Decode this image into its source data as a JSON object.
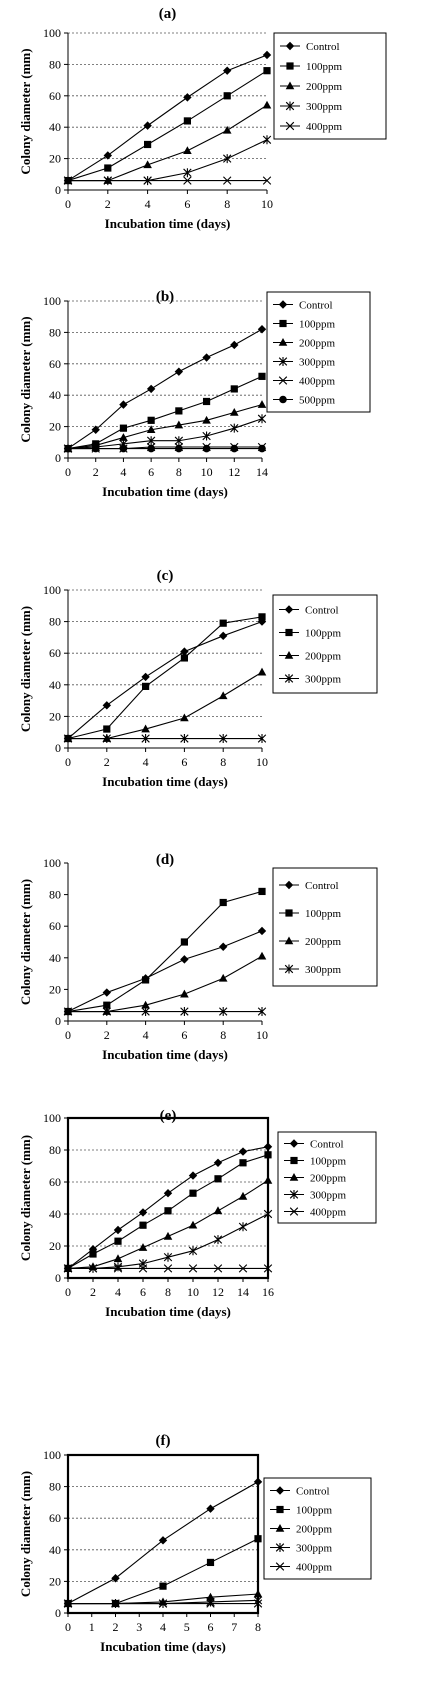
{
  "chart_data": [
    {
      "type": "line",
      "title": "(a)",
      "xlabel": "Incubation time (days)",
      "ylabel": "Colony diameter (mm)",
      "x": [
        0,
        2,
        4,
        6,
        8,
        10
      ],
      "xticks": [
        "0",
        "2",
        "4",
        "6",
        "8",
        "10"
      ],
      "xlim": [
        0,
        10
      ],
      "ylim": [
        0,
        100
      ],
      "yticks": [
        "0",
        "20",
        "40",
        "60",
        "80",
        "100"
      ],
      "grid": true,
      "legend": "right",
      "series": [
        {
          "name": "Control",
          "marker": "diamond",
          "values": [
            6,
            22,
            41,
            59,
            76,
            86
          ]
        },
        {
          "name": "100ppm",
          "marker": "square",
          "values": [
            6,
            14,
            29,
            44,
            60,
            76
          ]
        },
        {
          "name": "200ppm",
          "marker": "triangle",
          "values": [
            6,
            6,
            16,
            25,
            38,
            54
          ]
        },
        {
          "name": "300ppm",
          "marker": "asterisk",
          "values": [
            6,
            6,
            6,
            11,
            20,
            32
          ]
        },
        {
          "name": "400ppm",
          "marker": "x",
          "values": [
            6,
            6,
            6,
            6,
            6,
            6
          ]
        }
      ]
    },
    {
      "type": "line",
      "title": "(b)",
      "xlabel": "Incubation time (days)",
      "ylabel": "Colony diameter (mm)",
      "x": [
        0,
        2,
        4,
        6,
        8,
        10,
        12,
        14
      ],
      "xticks": [
        "0",
        "2",
        "4",
        "6",
        "8",
        "10",
        "12",
        "14"
      ],
      "xlim": [
        0,
        14
      ],
      "ylim": [
        0,
        100
      ],
      "yticks": [
        "0",
        "20",
        "40",
        "60",
        "80",
        "100"
      ],
      "grid": true,
      "legend": "right",
      "series": [
        {
          "name": "Control",
          "marker": "diamond",
          "values": [
            6,
            18,
            34,
            44,
            55,
            64,
            72,
            82
          ]
        },
        {
          "name": "100ppm",
          "marker": "square",
          "values": [
            6,
            9,
            19,
            24,
            30,
            36,
            44,
            52
          ]
        },
        {
          "name": "200ppm",
          "marker": "triangle",
          "values": [
            6,
            8,
            13,
            18,
            21,
            24,
            29,
            34
          ]
        },
        {
          "name": "300ppm",
          "marker": "asterisk",
          "values": [
            6,
            7,
            9,
            11,
            11,
            14,
            19,
            25
          ]
        },
        {
          "name": "400ppm",
          "marker": "x",
          "values": [
            6,
            6,
            6,
            7,
            7,
            7,
            7,
            7
          ]
        },
        {
          "name": "500ppm",
          "marker": "circle",
          "values": [
            6,
            6,
            6,
            6,
            6,
            6,
            6,
            6
          ]
        }
      ]
    },
    {
      "type": "line",
      "title": "(c)",
      "xlabel": "Incubation time (days)",
      "ylabel": "Colony diameter (mm)",
      "x": [
        0,
        2,
        4,
        6,
        8,
        10
      ],
      "xticks": [
        "0",
        "2",
        "4",
        "6",
        "8",
        "10"
      ],
      "xlim": [
        0,
        10
      ],
      "ylim": [
        0,
        100
      ],
      "yticks": [
        "0",
        "20",
        "40",
        "60",
        "80",
        "100"
      ],
      "grid": true,
      "legend": "right",
      "series": [
        {
          "name": "Control",
          "marker": "diamond",
          "values": [
            6,
            27,
            45,
            61,
            71,
            80
          ]
        },
        {
          "name": "100ppm",
          "marker": "square",
          "values": [
            6,
            12,
            39,
            57,
            79,
            83
          ]
        },
        {
          "name": "200ppm",
          "marker": "triangle",
          "values": [
            6,
            6,
            12,
            19,
            33,
            48
          ]
        },
        {
          "name": "300ppm",
          "marker": "asterisk",
          "values": [
            6,
            6,
            6,
            6,
            6,
            6
          ]
        }
      ]
    },
    {
      "type": "line",
      "title": "(d)",
      "xlabel": "Incubation time (days)",
      "ylabel": "Colony diameter (mm)",
      "x": [
        0,
        2,
        4,
        6,
        8,
        10
      ],
      "xticks": [
        "0",
        "2",
        "4",
        "6",
        "8",
        "10"
      ],
      "xlim": [
        0,
        10
      ],
      "ylim": [
        0,
        100
      ],
      "yticks": [
        "0",
        "20",
        "40",
        "60",
        "80",
        "100"
      ],
      "grid": false,
      "legend": "right",
      "series": [
        {
          "name": "Control",
          "marker": "diamond",
          "values": [
            6,
            18,
            27,
            39,
            47,
            57
          ]
        },
        {
          "name": "100ppm",
          "marker": "square",
          "values": [
            6,
            10,
            26,
            50,
            75,
            82
          ]
        },
        {
          "name": "200ppm",
          "marker": "triangle",
          "values": [
            6,
            6,
            10,
            17,
            27,
            41
          ]
        },
        {
          "name": "300ppm",
          "marker": "asterisk",
          "values": [
            6,
            6,
            6,
            6,
            6,
            6
          ]
        }
      ]
    },
    {
      "type": "line",
      "title": "(e)",
      "xlabel": "Incubation time (days)",
      "ylabel": "Colony diameter (mm)",
      "x": [
        0,
        2,
        4,
        6,
        8,
        10,
        12,
        14,
        16
      ],
      "xticks": [
        "0",
        "2",
        "4",
        "6",
        "8",
        "10",
        "12",
        "14",
        "16"
      ],
      "xlim": [
        0,
        16
      ],
      "ylim": [
        0,
        100
      ],
      "yticks": [
        "0",
        "20",
        "40",
        "60",
        "80",
        "100"
      ],
      "grid": true,
      "legend": "right",
      "series": [
        {
          "name": "Control",
          "marker": "diamond",
          "values": [
            6,
            18,
            30,
            41,
            53,
            64,
            72,
            79,
            82
          ]
        },
        {
          "name": "100ppm",
          "marker": "square",
          "values": [
            6,
            15,
            23,
            33,
            42,
            53,
            62,
            72,
            77
          ]
        },
        {
          "name": "200ppm",
          "marker": "triangle",
          "values": [
            6,
            7,
            12,
            19,
            26,
            33,
            42,
            51,
            61
          ]
        },
        {
          "name": "300ppm",
          "marker": "asterisk",
          "values": [
            6,
            6,
            7,
            9,
            13,
            17,
            24,
            32,
            40
          ]
        },
        {
          "name": "400ppm",
          "marker": "x",
          "values": [
            6,
            6,
            6,
            6,
            6,
            6,
            6,
            6,
            6
          ]
        }
      ]
    },
    {
      "type": "line",
      "title": "(f)",
      "xlabel": "Incubation time (days)",
      "ylabel": "Colony diameter (mm)",
      "x": [
        0,
        2,
        4,
        6,
        8
      ],
      "xticks": [
        "0",
        "1",
        "2",
        "3",
        "4",
        "5",
        "6",
        "7",
        "8"
      ],
      "xlim": [
        0,
        8
      ],
      "ylim": [
        0,
        100
      ],
      "yticks": [
        "0",
        "20",
        "40",
        "60",
        "80",
        "100"
      ],
      "grid": true,
      "legend": "right",
      "series": [
        {
          "name": "Control",
          "marker": "diamond",
          "values": [
            6,
            22,
            46,
            66,
            83
          ]
        },
        {
          "name": "100ppm",
          "marker": "square",
          "values": [
            6,
            6,
            17,
            32,
            47
          ]
        },
        {
          "name": "200ppm",
          "marker": "triangle",
          "values": [
            6,
            6,
            7,
            10,
            12
          ]
        },
        {
          "name": "300ppm",
          "marker": "asterisk",
          "values": [
            6,
            6,
            6,
            7,
            8
          ]
        },
        {
          "name": "400ppm",
          "marker": "x",
          "values": [
            6,
            6,
            6,
            6,
            6
          ]
        }
      ]
    }
  ]
}
